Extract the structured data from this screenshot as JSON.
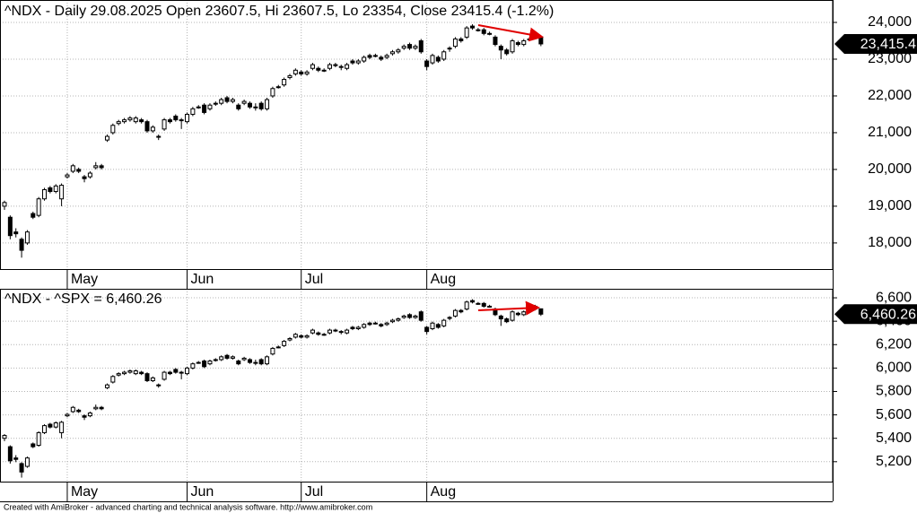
{
  "chart_data": [
    {
      "type": "candlestick",
      "title": "^NDX - Daily 29.08.2025 Open 23607.5, Hi 23607.5, Lo 23354, Close 23415.4 (-1.2%)",
      "last_label": "23,415.4",
      "open": [
        19000,
        18700,
        18300,
        18100,
        18000,
        18800,
        18750,
        19200,
        19500,
        19400,
        19200,
        19800,
        19950,
        20000,
        19800,
        19800,
        20050,
        20100,
        20800,
        21000,
        21250,
        21300,
        21350,
        21300,
        21350,
        21300,
        21050,
        20900,
        21100,
        21350,
        21450,
        21350,
        21300,
        21500,
        21700,
        21750,
        21650,
        21780,
        21800,
        21950,
        21850,
        21750,
        21800,
        21800,
        21700,
        21800,
        21650,
        22000,
        22250,
        22300,
        22500,
        22600,
        22650,
        22600,
        22750,
        22750,
        22700,
        22750,
        22850,
        22800,
        22750,
        22950,
        22900,
        22950,
        23100,
        23100,
        23050,
        23050,
        23150,
        23200,
        23300,
        23400,
        23300,
        23500,
        22950,
        22900,
        23050,
        23000,
        23300,
        23350,
        23550,
        23600,
        23900,
        23800,
        23800,
        23700,
        23600,
        23350,
        23250,
        23200,
        23450,
        23400,
        23550,
        23600,
        23607.5
      ],
      "high": [
        19150,
        18750,
        18400,
        18150,
        18350,
        18850,
        19250,
        19500,
        19550,
        19600,
        19620,
        19900,
        20150,
        20050,
        19850,
        19950,
        20200,
        20150,
        20950,
        21250,
        21350,
        21400,
        21450,
        21450,
        21400,
        21350,
        21200,
        20950,
        21400,
        21400,
        21500,
        21400,
        21550,
        21700,
        21750,
        21800,
        21800,
        21850,
        21950,
        22000,
        21950,
        21800,
        21900,
        21850,
        21800,
        21850,
        21950,
        22250,
        22300,
        22500,
        22600,
        22750,
        22700,
        22700,
        22900,
        22800,
        22750,
        22900,
        22900,
        22850,
        22900,
        23000,
        23000,
        23100,
        23150,
        23150,
        23100,
        23150,
        23250,
        23300,
        23400,
        23450,
        23400,
        23550,
        23000,
        23150,
        23100,
        23250,
        23350,
        23600,
        23600,
        23900,
        23950,
        23850,
        23850,
        23750,
        23650,
        23400,
        23300,
        23550,
        23500,
        23550,
        23600,
        23750,
        23607.5
      ],
      "low": [
        18900,
        18100,
        18150,
        17600,
        17950,
        18650,
        18700,
        19150,
        19350,
        19350,
        19000,
        19750,
        19900,
        19900,
        19650,
        19750,
        20000,
        20000,
        20750,
        20950,
        21200,
        21250,
        21300,
        21250,
        21250,
        21000,
        21000,
        20800,
        21050,
        21250,
        21300,
        21100,
        21250,
        21450,
        21650,
        21500,
        21600,
        21730,
        21750,
        21800,
        21800,
        21600,
        21750,
        21650,
        21600,
        21600,
        21600,
        21950,
        22200,
        22250,
        22450,
        22550,
        22550,
        22550,
        22700,
        22650,
        22650,
        22700,
        22780,
        22700,
        22700,
        22850,
        22850,
        22900,
        23000,
        23050,
        22950,
        23000,
        23100,
        23150,
        23250,
        23250,
        23250,
        23150,
        22700,
        22850,
        22900,
        22950,
        23200,
        23300,
        23450,
        23550,
        23800,
        23750,
        23650,
        23650,
        23350,
        23000,
        23100,
        23150,
        23350,
        23350,
        23500,
        23550,
        23354
      ],
      "close": [
        19100,
        18200,
        18250,
        17800,
        18300,
        18700,
        19200,
        19450,
        19400,
        19550,
        19570,
        19850,
        20100,
        19950,
        19750,
        19900,
        20100,
        20050,
        20900,
        21200,
        21300,
        21350,
        21400,
        21400,
        21300,
        21050,
        21150,
        20900,
        21350,
        21300,
        21350,
        21350,
        21500,
        21650,
        21700,
        21550,
        21750,
        21800,
        21900,
        21850,
        21900,
        21650,
        21850,
        21700,
        21700,
        21650,
        21900,
        22200,
        22250,
        22450,
        22550,
        22700,
        22600,
        22650,
        22850,
        22700,
        22700,
        22850,
        22830,
        22780,
        22850,
        22900,
        22950,
        23050,
        23050,
        23100,
        23000,
        23100,
        23200,
        23250,
        23350,
        23300,
        23350,
        23200,
        22800,
        23100,
        22950,
        23200,
        23300,
        23550,
        23500,
        23850,
        23850,
        23800,
        23700,
        23700,
        23400,
        23250,
        23150,
        23500,
        23400,
        23500,
        23550,
        23700,
        23415.4
      ],
      "ylim": [
        17290,
        24610
      ],
      "yticks": [
        {
          "value": 18000,
          "label": "18,000"
        },
        {
          "value": 19000,
          "label": "19,000"
        },
        {
          "value": 20000,
          "label": "20,000"
        },
        {
          "value": 21000,
          "label": "21,000"
        },
        {
          "value": 22000,
          "label": "22,000"
        },
        {
          "value": 23000,
          "label": "23,000"
        },
        {
          "value": 24000,
          "label": "24,000"
        }
      ],
      "xticks": [
        {
          "value": 11,
          "label": "May"
        },
        {
          "value": 32,
          "label": "Jun"
        },
        {
          "value": 52,
          "label": "Jul"
        },
        {
          "value": 74,
          "label": "Aug"
        }
      ],
      "up_color": "#ffffff",
      "down_color": "#000000",
      "grid": true
    },
    {
      "type": "candlestick",
      "title": "^NDX - ^SPX = 6,460.26",
      "last_label": "6,460.26",
      "open": [
        5400,
        5328,
        5232,
        5184,
        5160,
        5352,
        5340,
        5448,
        5520,
        5496,
        5448,
        5592,
        5628,
        5640,
        5592,
        5592,
        5652,
        5664,
        5832,
        5880,
        5940,
        5952,
        5964,
        5952,
        5964,
        5952,
        5892,
        5856,
        5904,
        5964,
        5988,
        5964,
        5952,
        6000,
        6048,
        6060,
        6036,
        6067,
        6072,
        6108,
        6084,
        6060,
        6072,
        6072,
        6048,
        6072,
        6036,
        6120,
        6180,
        6192,
        6240,
        6264,
        6276,
        6264,
        6300,
        6300,
        6288,
        6300,
        6324,
        6312,
        6300,
        6348,
        6336,
        6348,
        6384,
        6384,
        6372,
        6372,
        6396,
        6408,
        6432,
        6456,
        6432,
        6480,
        6348,
        6336,
        6372,
        6360,
        6432,
        6444,
        6492,
        6504,
        6576,
        6552,
        6552,
        6528,
        6504,
        6444,
        6420,
        6408,
        6468,
        6456,
        6492,
        6504,
        6506
      ],
      "high": [
        5436,
        5340,
        5256,
        5196,
        5244,
        5364,
        5460,
        5520,
        5532,
        5544,
        5549,
        5616,
        5676,
        5652,
        5604,
        5628,
        5688,
        5676,
        5868,
        5940,
        5964,
        5976,
        5988,
        5988,
        5976,
        5964,
        5928,
        5868,
        5976,
        5976,
        6000,
        5976,
        6012,
        6048,
        6060,
        6072,
        6072,
        6084,
        6108,
        6120,
        6108,
        6072,
        6096,
        6084,
        6072,
        6084,
        6108,
        6180,
        6192,
        6240,
        6264,
        6300,
        6288,
        6288,
        6336,
        6312,
        6300,
        6336,
        6336,
        6324,
        6336,
        6360,
        6360,
        6384,
        6396,
        6396,
        6384,
        6396,
        6420,
        6432,
        6456,
        6468,
        6456,
        6492,
        6360,
        6396,
        6384,
        6420,
        6444,
        6504,
        6504,
        6576,
        6588,
        6564,
        6564,
        6540,
        6516,
        6456,
        6432,
        6492,
        6480,
        6492,
        6504,
        6540,
        6506
      ],
      "low": [
        5376,
        5184,
        5196,
        5064,
        5148,
        5316,
        5328,
        5436,
        5484,
        5484,
        5400,
        5580,
        5616,
        5616,
        5556,
        5580,
        5640,
        5640,
        5820,
        5868,
        5928,
        5940,
        5952,
        5940,
        5940,
        5880,
        5880,
        5832,
        5892,
        5940,
        5952,
        5904,
        5940,
        5988,
        6036,
        6000,
        6024,
        6055,
        6060,
        6072,
        6072,
        6024,
        6060,
        6036,
        6024,
        6024,
        6024,
        6108,
        6168,
        6180,
        6228,
        6252,
        6252,
        6252,
        6288,
        6276,
        6276,
        6288,
        6307,
        6288,
        6288,
        6324,
        6324,
        6336,
        6360,
        6372,
        6348,
        6360,
        6384,
        6396,
        6420,
        6420,
        6420,
        6396,
        6288,
        6324,
        6336,
        6348,
        6408,
        6432,
        6468,
        6492,
        6552,
        6540,
        6516,
        6516,
        6444,
        6360,
        6384,
        6396,
        6444,
        6444,
        6480,
        6492,
        6445
      ],
      "close": [
        5424,
        5208,
        5220,
        5112,
        5232,
        5328,
        5448,
        5508,
        5496,
        5532,
        5537,
        5604,
        5664,
        5628,
        5580,
        5616,
        5664,
        5652,
        5856,
        5928,
        5952,
        5964,
        5976,
        5976,
        5952,
        5892,
        5916,
        5856,
        5964,
        5952,
        5964,
        5964,
        6000,
        6036,
        6048,
        6012,
        6060,
        6072,
        6096,
        6084,
        6096,
        6036,
        6084,
        6048,
        6048,
        6036,
        6096,
        6168,
        6180,
        6228,
        6252,
        6288,
        6264,
        6276,
        6324,
        6288,
        6288,
        6324,
        6319,
        6307,
        6324,
        6336,
        6348,
        6372,
        6372,
        6384,
        6360,
        6384,
        6408,
        6420,
        6444,
        6432,
        6444,
        6408,
        6312,
        6384,
        6348,
        6408,
        6432,
        6492,
        6480,
        6564,
        6564,
        6552,
        6528,
        6528,
        6456,
        6420,
        6396,
        6480,
        6456,
        6480,
        6492,
        6528,
        6460.26
      ],
      "ylim": [
        5030,
        6677
      ],
      "yticks": [
        {
          "value": 5200,
          "label": "5,200"
        },
        {
          "value": 5400,
          "label": "5,400"
        },
        {
          "value": 5600,
          "label": "5,600"
        },
        {
          "value": 5800,
          "label": "5,800"
        },
        {
          "value": 6000,
          "label": "6,000"
        },
        {
          "value": 6200,
          "label": "6,200"
        },
        {
          "value": 6400,
          "label": "6,400"
        },
        {
          "value": 6600,
          "label": "6,600"
        }
      ],
      "xticks": [
        {
          "value": 11,
          "label": "May"
        },
        {
          "value": 32,
          "label": "Jun"
        },
        {
          "value": 52,
          "label": "Jul"
        },
        {
          "value": 74,
          "label": "Aug"
        }
      ],
      "up_color": "#ffffff",
      "down_color": "#000000",
      "grid": true
    }
  ],
  "footer": "Created with AmiBroker - advanced charting and technical analysis software. http://www.amibroker.com"
}
